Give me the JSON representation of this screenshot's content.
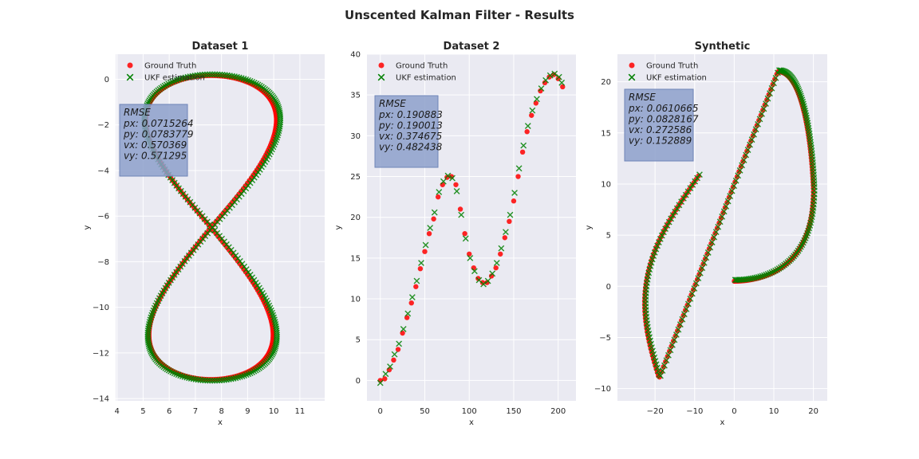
{
  "figure": {
    "title": "Unscented Kalman Filter - Results"
  },
  "chart_data": [
    {
      "type": "scatter",
      "title": "Dataset 1",
      "xlabel": "x",
      "ylabel": "y",
      "xlim": [
        3.95,
        11.95
      ],
      "ylim": [
        -14.1,
        1.1
      ],
      "xticks": [
        4,
        5,
        6,
        7,
        8,
        9,
        10,
        11
      ],
      "yticks": [
        0,
        -2,
        -4,
        -6,
        -8,
        -10,
        -12,
        -14
      ],
      "grid": true,
      "legend": "top-left",
      "series": [
        {
          "name": "Ground Truth",
          "marker": "circle",
          "color": "#ff0000",
          "shape": "figure-eight",
          "params": {
            "cx": 7.6,
            "cy": -6.5,
            "ax": 2.5,
            "ay": 6.8,
            "n": 340
          }
        },
        {
          "name": "UKF estimation",
          "marker": "x",
          "color": "#008000",
          "shape": "figure-eight",
          "params": {
            "cx": 7.65,
            "cy": -6.5,
            "ax": 2.6,
            "ay": 6.85,
            "n": 340
          }
        }
      ],
      "rmse": {
        "title": "RMSE",
        "lines": [
          "px: 0.0715264",
          "py: 0.0783779",
          "vx: 0.570369",
          "vy: 0.571295"
        ]
      }
    },
    {
      "type": "scatter",
      "title": "Dataset 2",
      "xlabel": "x",
      "ylabel": "y",
      "xlim": [
        -15,
        220
      ],
      "ylim": [
        -2.5,
        40
      ],
      "xticks": [
        0,
        50,
        100,
        150,
        200
      ],
      "yticks": [
        0,
        5,
        10,
        15,
        20,
        25,
        30,
        35,
        40
      ],
      "grid": true,
      "legend": "top-left",
      "series": [
        {
          "name": "Ground Truth",
          "marker": "circle",
          "color": "#ff0000",
          "points": [
            [
              0,
              0
            ],
            [
              5,
              0.2
            ],
            [
              10,
              1.3
            ],
            [
              15,
              2.5
            ],
            [
              20,
              3.8
            ],
            [
              25,
              5.8
            ],
            [
              30,
              7.7
            ],
            [
              35,
              9.5
            ],
            [
              40,
              11.5
            ],
            [
              45,
              13.7
            ],
            [
              50,
              15.8
            ],
            [
              55,
              18.0
            ],
            [
              60,
              19.8
            ],
            [
              65,
              22.5
            ],
            [
              70,
              24.0
            ],
            [
              75,
              24.9
            ],
            [
              80,
              25.0
            ],
            [
              85,
              24.0
            ],
            [
              90,
              21.0
            ],
            [
              95,
              18.0
            ],
            [
              100,
              15.5
            ],
            [
              105,
              13.8
            ],
            [
              110,
              12.5
            ],
            [
              115,
              12.0
            ],
            [
              120,
              12.0
            ],
            [
              125,
              12.8
            ],
            [
              130,
              13.8
            ],
            [
              135,
              15.5
            ],
            [
              140,
              17.5
            ],
            [
              145,
              19.5
            ],
            [
              150,
              22.0
            ],
            [
              155,
              25.0
            ],
            [
              160,
              28.0
            ],
            [
              165,
              30.5
            ],
            [
              170,
              32.5
            ],
            [
              175,
              34.0
            ],
            [
              180,
              35.5
            ],
            [
              185,
              36.5
            ],
            [
              190,
              37.2
            ],
            [
              195,
              37.5
            ],
            [
              200,
              37.0
            ],
            [
              205,
              36.0
            ]
          ]
        },
        {
          "name": "UKF estimation",
          "marker": "x",
          "color": "#008000",
          "points": [
            [
              0,
              -0.3
            ],
            [
              6,
              0.8
            ],
            [
              11,
              1.7
            ],
            [
              16,
              3.2
            ],
            [
              21,
              4.5
            ],
            [
              26,
              6.3
            ],
            [
              31,
              8.2
            ],
            [
              36,
              10.2
            ],
            [
              41,
              12.2
            ],
            [
              46,
              14.4
            ],
            [
              51,
              16.6
            ],
            [
              56,
              18.7
            ],
            [
              61,
              20.6
            ],
            [
              66,
              23.1
            ],
            [
              71,
              24.4
            ],
            [
              76,
              25.1
            ],
            [
              81,
              24.8
            ],
            [
              86,
              23.2
            ],
            [
              91,
              20.3
            ],
            [
              96,
              17.4
            ],
            [
              101,
              15.0
            ],
            [
              106,
              13.4
            ],
            [
              111,
              12.3
            ],
            [
              116,
              11.8
            ],
            [
              121,
              12.2
            ],
            [
              126,
              13.1
            ],
            [
              131,
              14.4
            ],
            [
              136,
              16.2
            ],
            [
              141,
              18.2
            ],
            [
              146,
              20.3
            ],
            [
              151,
              23.0
            ],
            [
              156,
              26.0
            ],
            [
              161,
              28.8
            ],
            [
              166,
              31.2
            ],
            [
              171,
              33.1
            ],
            [
              176,
              34.5
            ],
            [
              181,
              35.8
            ],
            [
              186,
              36.8
            ],
            [
              191,
              37.4
            ],
            [
              196,
              37.6
            ],
            [
              201,
              37.2
            ],
            [
              204,
              36.5
            ]
          ]
        }
      ],
      "rmse": {
        "title": "RMSE",
        "lines": [
          "px: 0.190883",
          "py: 0.190013",
          "vx: 0.374675",
          "vy: 0.482438"
        ]
      }
    },
    {
      "type": "scatter",
      "title": "Synthetic",
      "xlabel": "x",
      "ylabel": "y",
      "xlim": [
        -29.5,
        23.5
      ],
      "ylim": [
        -11.2,
        22.7
      ],
      "xticks": [
        -20,
        -10,
        0,
        10,
        20
      ],
      "yticks": [
        -10,
        -5,
        0,
        5,
        10,
        15,
        20
      ],
      "grid": true,
      "legend": "top-left",
      "series": [
        {
          "name": "Ground Truth",
          "marker": "circle",
          "color": "#ff0000",
          "shape": "s-curve"
        },
        {
          "name": "UKF estimation",
          "marker": "x",
          "color": "#008000",
          "shape": "s-curve"
        }
      ],
      "rmse": {
        "title": "RMSE",
        "lines": [
          "px: 0.0610665",
          "py: 0.0828167",
          "vx: 0.272586",
          "vy: 0.152889"
        ]
      }
    }
  ]
}
